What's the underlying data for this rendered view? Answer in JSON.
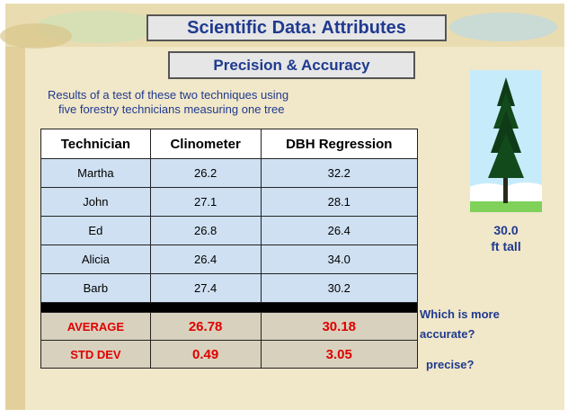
{
  "header": {
    "title": "Scientific Data: Attributes",
    "subtitle": "Precision & Accuracy"
  },
  "intro": [
    "Results of a test of these two techniques using",
    "five forestry technicians measuring one tree"
  ],
  "table": {
    "columns": [
      "Technician",
      "Clinometer",
      "DBH Regression"
    ],
    "rows": [
      [
        "Martha",
        "26.2",
        "32.2"
      ],
      [
        "John",
        "27.1",
        "28.1"
      ],
      [
        "Ed",
        "26.8",
        "26.4"
      ],
      [
        "Alicia",
        "26.4",
        "34.0"
      ],
      [
        "Barb",
        "27.4",
        "30.2"
      ]
    ],
    "summary": [
      [
        "AVERAGE",
        "26.78",
        "30.18"
      ],
      [
        "STD DEV",
        "0.49",
        "3.05"
      ]
    ]
  },
  "tree": {
    "height": "30.0",
    "unit": "ft tall"
  },
  "questions": [
    "Which is more",
    "accurate?",
    "precise?"
  ]
}
